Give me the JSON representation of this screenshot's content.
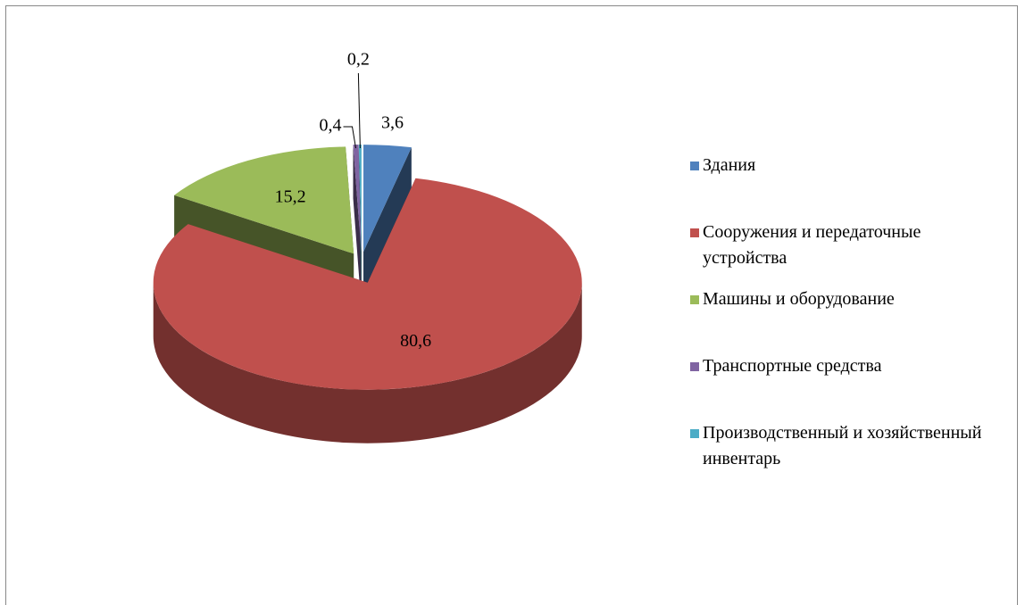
{
  "chart_data": {
    "type": "pie",
    "categories": [
      "Здания",
      "Сооружения и передаточные устройства",
      "Машины и оборудование",
      "Транспортные средства",
      "Производственный и хозяйственный инвентарь"
    ],
    "values": [
      3.6,
      80.6,
      15.2,
      0.4,
      0.2
    ],
    "value_labels": [
      "3,6",
      "80,6",
      "15,2",
      "0,4",
      "0,2"
    ],
    "colors": [
      "#4f81bd",
      "#c0504d",
      "#9bbb59",
      "#8064a2",
      "#4bacc6"
    ]
  }
}
